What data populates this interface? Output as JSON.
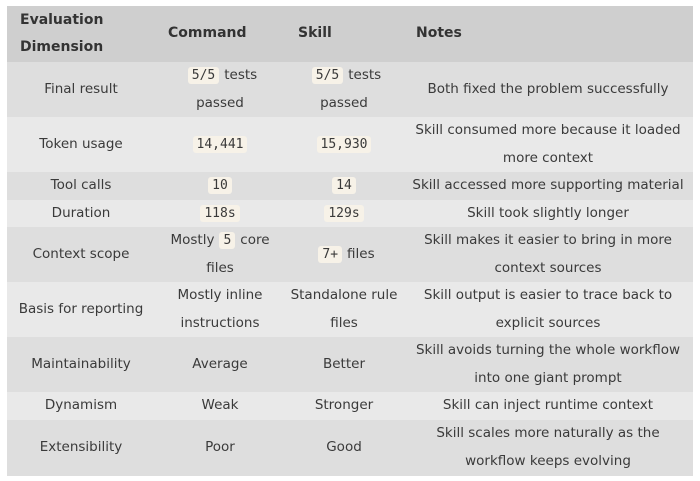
{
  "table": {
    "header": [
      "Evaluation Dimension",
      "Command",
      "Skill",
      "Notes"
    ],
    "rows": [
      [
        [
          "Final result"
        ],
        [
          {
            "code": "5/5"
          },
          "tests passed"
        ],
        [
          {
            "code": "5/5"
          },
          "tests passed"
        ],
        [
          "Both fixed the problem successfully"
        ]
      ],
      [
        [
          "Token usage"
        ],
        [
          {
            "code": "14,441"
          }
        ],
        [
          {
            "code": "15,930"
          }
        ],
        [
          "Skill consumed more because it loaded more context"
        ]
      ],
      [
        [
          "Tool calls"
        ],
        [
          {
            "code": "10"
          }
        ],
        [
          {
            "code": "14"
          }
        ],
        [
          "Skill accessed more supporting material"
        ]
      ],
      [
        [
          "Duration"
        ],
        [
          {
            "code": "118s"
          }
        ],
        [
          {
            "code": "129s"
          }
        ],
        [
          "Skill took slightly longer"
        ]
      ],
      [
        [
          "Context scope"
        ],
        [
          "Mostly",
          {
            "code": "5"
          },
          "core files"
        ],
        [
          {
            "code": "7+"
          },
          "files"
        ],
        [
          "Skill makes it easier to bring in more context sources"
        ]
      ],
      [
        [
          "Basis for reporting"
        ],
        [
          "Mostly inline instructions"
        ],
        [
          "Standalone rule files"
        ],
        [
          "Skill output is easier to trace back to explicit sources"
        ]
      ],
      [
        [
          "Maintainability"
        ],
        [
          "Average"
        ],
        [
          "Better"
        ],
        [
          "Skill avoids turning the whole workflow into one giant prompt"
        ]
      ],
      [
        [
          "Dynamism"
        ],
        [
          "Weak"
        ],
        [
          "Stronger"
        ],
        [
          "Skill can inject runtime context"
        ]
      ],
      [
        [
          "Extensibility"
        ],
        [
          "Poor"
        ],
        [
          "Good"
        ],
        [
          "Skill scales more naturally as the workflow keeps evolving"
        ]
      ]
    ]
  }
}
